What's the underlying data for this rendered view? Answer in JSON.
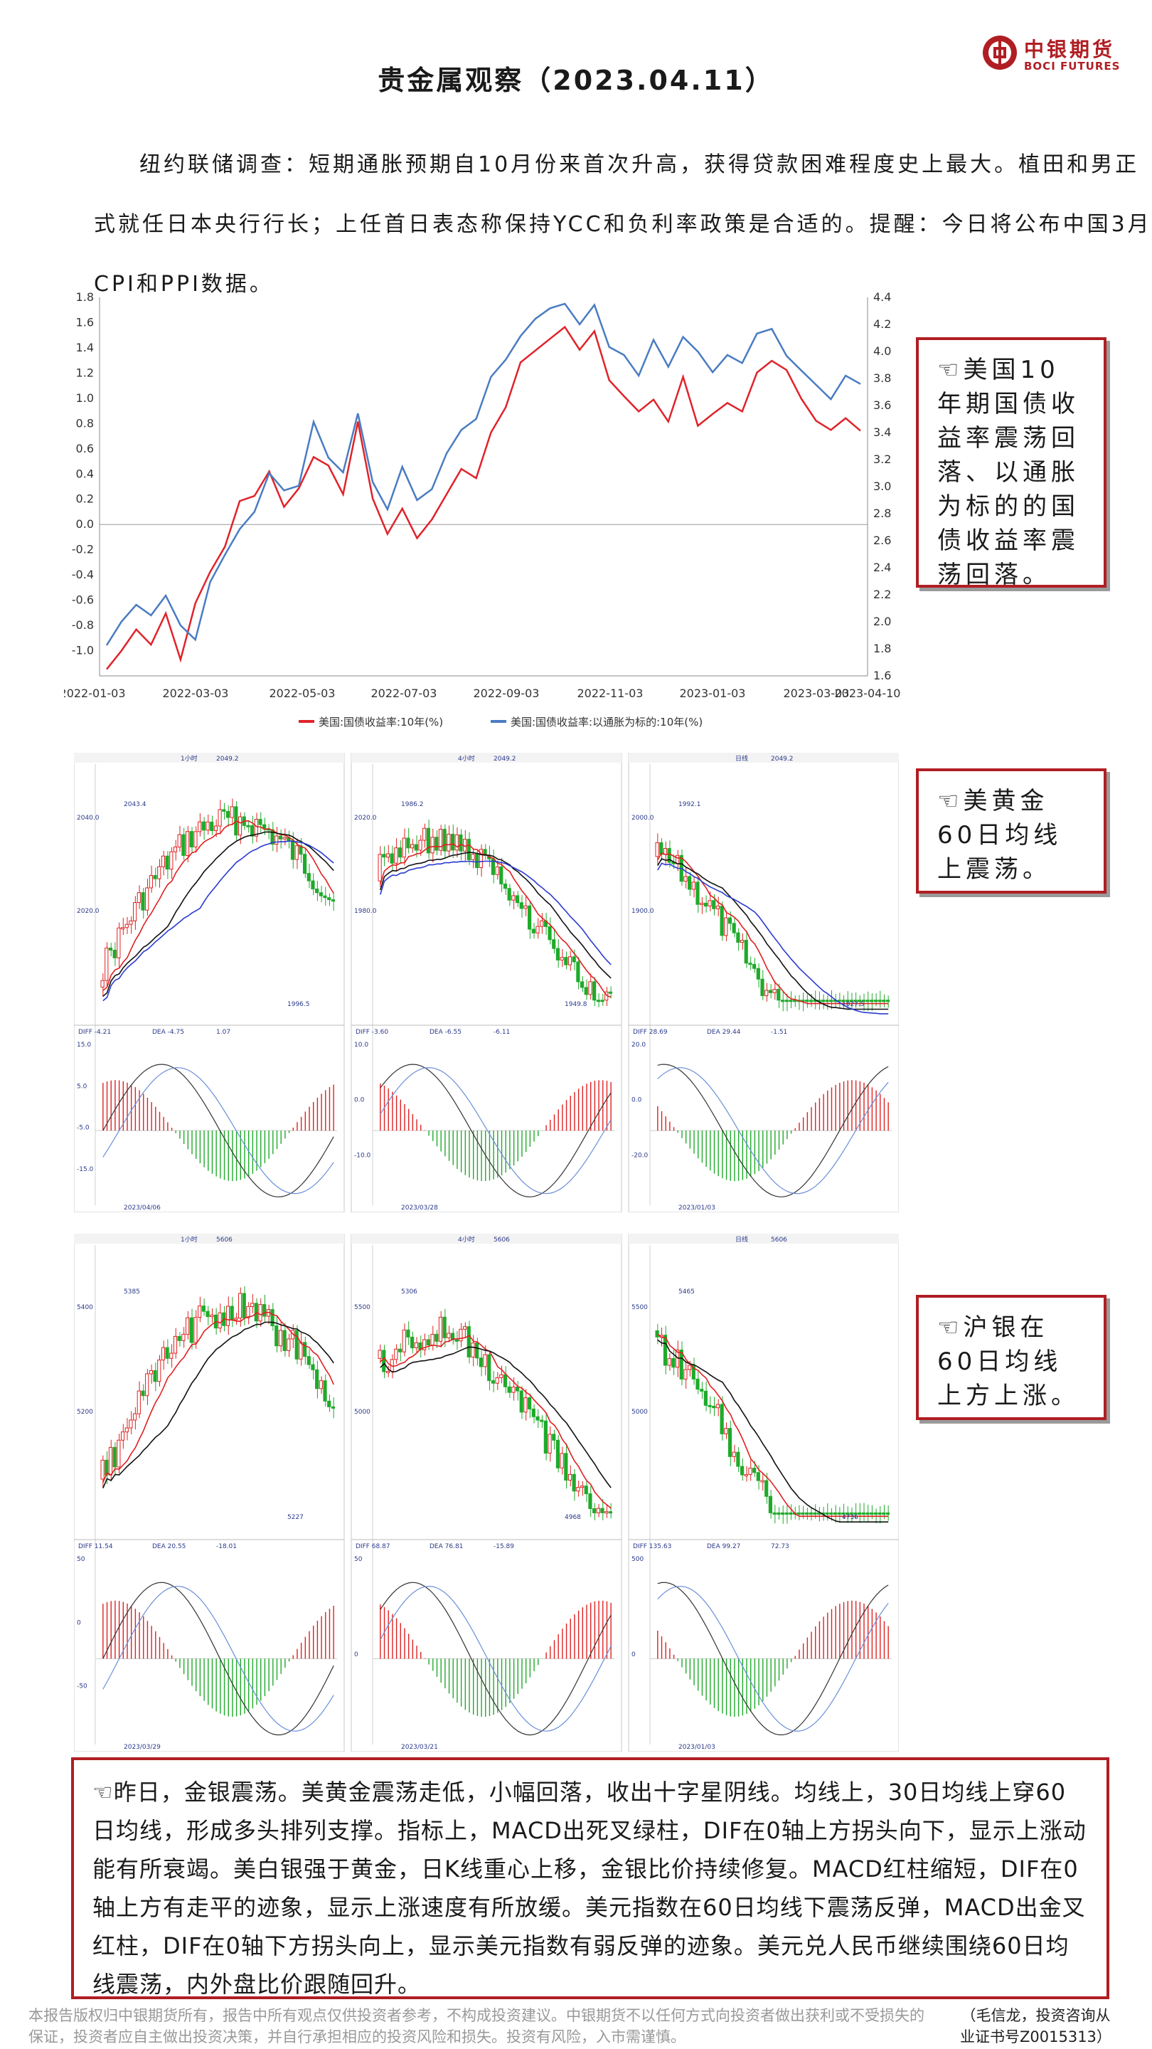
{
  "header": {
    "title": "贵金属观察（2023.04.11）",
    "logo_cn": "中银期货",
    "logo_en": "BOCI FUTURES"
  },
  "intro": {
    "line1": "纽约联储调查：短期通胀预期自10月份来首次升高，获得贷款困难程度史上最大。植田和男正",
    "line2": "式就任日本央行行长；上任首日表态称保持YCC和负利率政策是合适的。提醒：今日将公布中国3月",
    "line3": "CPI和PPI数据。"
  },
  "chart_data": {
    "type": "line",
    "x_labels": [
      "2022-01-03",
      "2022-03-03",
      "2022-05-03",
      "2022-07-03",
      "2022-09-03",
      "2022-11-03",
      "2023-01-03",
      "2023-03-03",
      "2023-04-10"
    ],
    "y_left_ticks": [
      "1.8",
      "1.6",
      "1.4",
      "1.2",
      "1.0",
      "0.8",
      "0.6",
      "0.4",
      "0.2",
      "0.0",
      "-0.2",
      "-0.4",
      "-0.6",
      "-0.8",
      "-1.0"
    ],
    "y_right_ticks": [
      "4.4",
      "4.2",
      "4.0",
      "3.8",
      "3.6",
      "3.4",
      "3.2",
      "3.0",
      "2.8",
      "2.6",
      "2.4",
      "2.2",
      "2.0",
      "1.8",
      "1.6"
    ],
    "ylim_left": [
      -1.2,
      1.8
    ],
    "ylim_right": [
      1.6,
      4.4
    ],
    "colors": {
      "nominal": "#e0232a",
      "real": "#4a7cc2"
    },
    "series": [
      {
        "name": "美国:国债收益率:10年(%)",
        "axis": "right",
        "values": [
          1.63,
          1.78,
          1.95,
          1.85,
          2.05,
          1.72,
          2.15,
          2.35,
          2.55,
          2.9,
          2.95,
          3.1,
          2.85,
          3.0,
          3.2,
          3.15,
          2.95,
          3.5,
          2.9,
          2.65,
          2.85,
          2.6,
          2.75,
          2.95,
          3.15,
          3.05,
          3.4,
          3.6,
          3.9,
          4.0,
          4.1,
          4.2,
          4.0,
          4.15,
          3.8,
          3.65,
          3.55,
          3.65,
          3.5,
          3.8,
          3.45,
          3.55,
          3.6,
          3.55,
          3.85,
          3.95,
          3.85,
          3.65,
          3.5,
          3.4,
          3.5,
          3.42
        ]
      },
      {
        "name": "美国:国债收益率:以通胀为标的:10年(%)",
        "axis": "left",
        "values": [
          -0.95,
          -0.75,
          -0.65,
          -0.72,
          -0.55,
          -0.82,
          -0.92,
          -0.45,
          -0.22,
          -0.05,
          0.1,
          0.42,
          0.25,
          0.3,
          0.82,
          0.55,
          0.4,
          0.88,
          0.35,
          0.1,
          0.45,
          0.2,
          0.3,
          0.55,
          0.75,
          0.85,
          1.15,
          1.3,
          1.5,
          1.65,
          1.7,
          1.75,
          1.6,
          1.72,
          1.4,
          1.35,
          1.2,
          1.45,
          1.25,
          1.5,
          1.35,
          1.2,
          1.35,
          1.3,
          1.5,
          1.55,
          1.35,
          1.2,
          1.1,
          1.0,
          1.2,
          1.1
        ]
      }
    ],
    "legend_position": "bottom",
    "grid": false
  },
  "callouts": {
    "c1": "☜美国10年期国债收益率震荡回落、以通胀为标的的国债收益率震荡回落。",
    "c2": "☜美黄金60日均线上震荡。",
    "c3": "☜沪银在60日均线上方上涨。"
  },
  "gold_panels": [
    {
      "period": "1小时",
      "high": "2049.2",
      "peak": "2043.4",
      "low": "1996.5",
      "tick_top": "2040.0",
      "tick_mid": "2020.0",
      "macd_ticks": [
        "15.0",
        "5.0",
        "-5.0",
        "-15.0"
      ],
      "date": "2023/04/06",
      "dif": "DIFF -4.21",
      "dea": "DEA -4.75",
      "macd": "1.07",
      "ma60": [
        0.55,
        0.52,
        0.48,
        0.42,
        0.38,
        0.35,
        0.32,
        0.3,
        0.32,
        0.34
      ]
    },
    {
      "period": "4小时",
      "high": "2049.2",
      "peak": "1986.2",
      "low": "1949.8",
      "tick_top": "2020.0",
      "tick_mid": "1980.0",
      "macd_ticks": [
        "10.0",
        "0.0",
        "-10.0"
      ],
      "date": "2023/03/28",
      "dif": "DIFF -3.60",
      "dea": "DEA -6.55",
      "macd": "-6.11",
      "ma60": [
        0.75,
        0.72,
        0.7,
        0.68,
        0.66,
        0.62,
        0.55,
        0.5,
        0.45,
        0.42
      ]
    },
    {
      "period": "日线",
      "high": "2049.2",
      "peak": "1992.1",
      "low": "1827.5",
      "tick_top": "2000.0",
      "tick_mid": "1900.0",
      "macd_ticks": [
        "20.0",
        "0.0",
        "-20.0"
      ],
      "date": "2023/01/03",
      "dif": "DIFF 28.69",
      "dea": "DEA 29.44",
      "macd": "-1.51",
      "ma60": [
        0.9,
        0.82,
        0.7,
        0.65,
        0.66,
        0.68,
        0.65,
        0.55,
        0.45,
        0.38
      ]
    }
  ],
  "silver_panels": [
    {
      "period": "1小时",
      "high": "5606",
      "peak": "5385",
      "low": "5227",
      "tick_top": "5400",
      "tick_mid": "5200",
      "macd_ticks": [
        "50",
        "0",
        "-50"
      ],
      "date": "2023/03/29",
      "dif": "DIFF 11.54",
      "dea": "DEA 20.55",
      "macd": "-18.01"
    },
    {
      "period": "4小时",
      "high": "5606",
      "peak": "5306",
      "low": "4968",
      "tick_top": "5500",
      "tick_mid": "5000",
      "macd_ticks": [
        "50",
        "0"
      ],
      "date": "2023/03/21",
      "dif": "DIFF 68.87",
      "dea": "DEA 76.81",
      "macd": "-15.89"
    },
    {
      "period": "日线",
      "high": "5606",
      "peak": "5465",
      "low": "4736",
      "tick_top": "5500",
      "tick_mid": "5000",
      "macd_ticks": [
        "500",
        "0"
      ],
      "date": "2023/01/03",
      "dif": "DIFF 135.63",
      "dea": "DEA 99.27",
      "macd": "72.73"
    }
  ],
  "summary": {
    "text": "☜昨日，金银震荡。美黄金震荡走低，小幅回落，收出十字星阴线。均线上，30日均线上穿60日均线，形成多头排列支撑。指标上，MACD出死叉绿柱，DIF在0轴上方拐头向下，显示上涨动能有所衰竭。美白银强于黄金，日K线重心上移，金银比价持续修复。MACD红柱缩短，DIF在0轴上方有走平的迹象，显示上涨速度有所放缓。美元指数在60日均线下震荡反弹，MACD出金叉红柱，DIF在0轴下方拐头向上，显示美元指数有弱反弹的迹象。美元兑人民币继续围绕60日均线震荡，内外盘比价跟随回升。"
  },
  "footer": {
    "disclaimer": "本报告版权归中银期货所有，报告中所有观点仅供投资者参考，不构成投资建议。中银期货不以任何方式向投资者做出获利或不受损失的保证，投资者应自主做出投资决策，并自行承担相应的投资风险和损失。投资有风险，入市需谨慎。",
    "author": "（毛信龙，投资咨询从",
    "license": "业证书号Z0015313）"
  }
}
